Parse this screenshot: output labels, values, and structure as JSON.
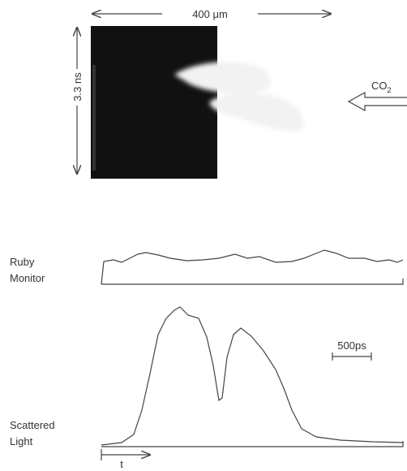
{
  "image": {
    "width_label": "400 μm",
    "height_label": "3.3 ns",
    "beam": {
      "text": "CO",
      "subscript": "2"
    }
  },
  "traces": [
    {
      "label_lines": [
        "Ruby",
        "Monitor"
      ]
    },
    {
      "label_lines": [
        "Scattered",
        "Light"
      ],
      "scale_label": "500ps",
      "axis_label": "t"
    }
  ]
}
